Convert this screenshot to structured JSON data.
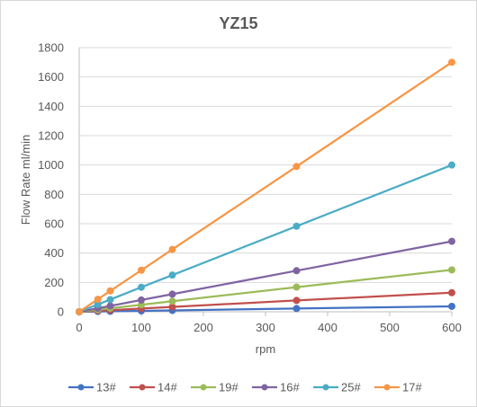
{
  "chart_data": {
    "type": "line",
    "title": "YZ15",
    "xlabel": "rpm",
    "ylabel": "Flow Rate ml/min",
    "xlim": [
      0,
      600
    ],
    "ylim": [
      0,
      1800
    ],
    "xticks": [
      0,
      100,
      200,
      300,
      400,
      500,
      600
    ],
    "yticks": [
      0,
      200,
      400,
      600,
      800,
      1000,
      1200,
      1400,
      1600,
      1800
    ],
    "grid": "horizontal",
    "legend_position": "bottom",
    "x": [
      0,
      30,
      50,
      100,
      150,
      350,
      600
    ],
    "series": [
      {
        "name": "13#",
        "color": "#4472c4",
        "values": [
          0,
          2,
          3,
          6,
          9,
          22,
          37
        ]
      },
      {
        "name": "14#",
        "color": "#c0504d",
        "values": [
          0,
          7,
          11,
          22,
          33,
          77,
          130
        ]
      },
      {
        "name": "19#",
        "color": "#9bbb59",
        "values": [
          0,
          14,
          24,
          48,
          72,
          168,
          285
        ]
      },
      {
        "name": "16#",
        "color": "#8064a2",
        "values": [
          0,
          24,
          40,
          80,
          120,
          280,
          480
        ]
      },
      {
        "name": "25#",
        "color": "#4bacc6",
        "values": [
          0,
          50,
          83,
          167,
          250,
          583,
          1000
        ]
      },
      {
        "name": "17#",
        "color": "#f79646",
        "values": [
          0,
          85,
          142,
          283,
          425,
          990,
          1700
        ]
      }
    ]
  }
}
